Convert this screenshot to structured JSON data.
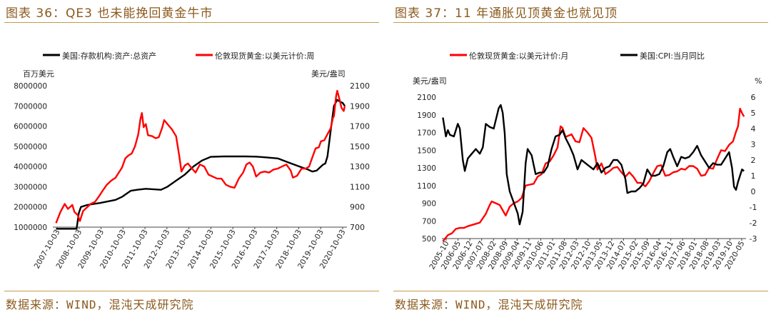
{
  "left_panel": {
    "title": "图表 36：QE3 也未能挽回黄金牛市",
    "source": "数据来源：WIND，混沌天成研究院"
  },
  "right_panel": {
    "title": "图表 37：11 年通胀见顶黄金也就见顶",
    "source": "数据来源：WIND，混沌天成研究院"
  },
  "colors": {
    "series_black": "#000000",
    "series_red": "#ff0000",
    "accent": "#c59b4c",
    "title_text": "#8a5a1c"
  },
  "chart_data": [
    {
      "type": "line",
      "legend": "top",
      "grid": false,
      "y_left_unit": "百万美元",
      "y_right_unit": "美元/盎司",
      "x_range": [
        2007.6,
        2021.2
      ],
      "y_left_lim": [
        1000000,
        8000000
      ],
      "y_right_lim": [
        700,
        2100
      ],
      "y_left_ticks": [
        "1000000",
        "2000000",
        "3000000",
        "4000000",
        "5000000",
        "6000000",
        "7000000",
        "8000000"
      ],
      "y_right_ticks": [
        "700",
        "900",
        "1100",
        "1300",
        "1500",
        "1700",
        "1900",
        "2100"
      ],
      "x_ticks": [
        "2007-10-03",
        "2008-10-03",
        "2009-10-03",
        "2010-10-03",
        "2011-10-03",
        "2012-10-03",
        "2013-10-03",
        "2014-10-03",
        "2015-10-03",
        "2016-10-03",
        "2017-10-03",
        "2018-10-03",
        "2019-10-03",
        "2020-10-03"
      ],
      "series": [
        {
          "name": "美国:存款机构:资产:总资产",
          "axis": "left",
          "color": "#000000",
          "x": [
            2007.75,
            2008.7,
            2008.8,
            2008.9,
            2009.2,
            2009.8,
            2010.5,
            2010.8,
            2011.2,
            2011.5,
            2011.9,
            2012.6,
            2012.9,
            2013.3,
            2013.7,
            2014.1,
            2014.5,
            2014.9,
            2015.5,
            2016.0,
            2016.5,
            2017.0,
            2017.5,
            2018.0,
            2018.5,
            2019.0,
            2019.4,
            2019.6,
            2019.8,
            2020.0,
            2020.1,
            2020.2,
            2020.3,
            2020.45,
            2020.6,
            2020.75,
            2020.9,
            2021.0,
            2021.1
          ],
          "values": [
            920000,
            920000,
            1700000,
            2000000,
            2100000,
            2200000,
            2350000,
            2500000,
            2800000,
            2850000,
            2900000,
            2850000,
            3000000,
            3300000,
            3600000,
            4000000,
            4300000,
            4480000,
            4500000,
            4500000,
            4500000,
            4490000,
            4450000,
            4400000,
            4200000,
            4000000,
            3850000,
            3750000,
            3800000,
            4000000,
            4100000,
            4150000,
            4500000,
            5800000,
            7000000,
            7300000,
            7200000,
            7150000,
            7000000
          ]
        },
        {
          "name": "伦敦现货黄金:以美元计价:周",
          "axis": "right",
          "color": "#ff0000",
          "x": [
            2007.75,
            2007.95,
            2008.15,
            2008.3,
            2008.5,
            2008.6,
            2008.75,
            2008.85,
            2009.0,
            2009.2,
            2009.35,
            2009.55,
            2009.75,
            2009.9,
            2010.1,
            2010.3,
            2010.5,
            2010.65,
            2010.8,
            2010.95,
            2011.1,
            2011.25,
            2011.4,
            2011.55,
            2011.65,
            2011.72,
            2011.8,
            2011.9,
            2012.0,
            2012.2,
            2012.35,
            2012.5,
            2012.65,
            2012.75,
            2012.9,
            2013.1,
            2013.3,
            2013.45,
            2013.55,
            2013.7,
            2013.85,
            2014.0,
            2014.2,
            2014.4,
            2014.6,
            2014.8,
            2015.0,
            2015.2,
            2015.4,
            2015.6,
            2015.8,
            2016.0,
            2016.2,
            2016.4,
            2016.55,
            2016.7,
            2016.85,
            2017.0,
            2017.2,
            2017.4,
            2017.6,
            2017.8,
            2018.0,
            2018.2,
            2018.4,
            2018.6,
            2018.7,
            2018.9,
            2019.1,
            2019.3,
            2019.45,
            2019.6,
            2019.75,
            2019.9,
            2020.0,
            2020.15,
            2020.3,
            2020.45,
            2020.55,
            2020.6,
            2020.65,
            2020.7,
            2020.75,
            2020.85,
            2020.95,
            2021.05,
            2021.1
          ],
          "values": [
            740,
            850,
            930,
            880,
            920,
            850,
            820,
            760,
            860,
            900,
            930,
            950,
            1010,
            1060,
            1120,
            1160,
            1190,
            1240,
            1290,
            1380,
            1410,
            1430,
            1500,
            1620,
            1770,
            1830,
            1690,
            1720,
            1610,
            1600,
            1580,
            1590,
            1680,
            1760,
            1720,
            1670,
            1600,
            1400,
            1250,
            1310,
            1330,
            1290,
            1240,
            1320,
            1300,
            1220,
            1200,
            1180,
            1180,
            1120,
            1100,
            1090,
            1180,
            1240,
            1320,
            1340,
            1300,
            1200,
            1240,
            1250,
            1240,
            1270,
            1280,
            1300,
            1320,
            1260,
            1190,
            1210,
            1280,
            1280,
            1300,
            1390,
            1480,
            1490,
            1550,
            1560,
            1620,
            1680,
            1780,
            1800,
            1900,
            2000,
            2050,
            1970,
            1880,
            1850,
            1900
          ]
        }
      ]
    },
    {
      "type": "line",
      "legend": "top",
      "grid": false,
      "y_left_unit": "美元/盎司",
      "y_right_unit": "%",
      "x_range": [
        2005.7,
        2020.95
      ],
      "y_left_lim": [
        500,
        2100
      ],
      "y_right_lim": [
        -3,
        6
      ],
      "y_left_ticks": [
        "500",
        "700",
        "900",
        "1100",
        "1300",
        "1500",
        "1700",
        "1900",
        "2100"
      ],
      "y_right_ticks": [
        "-3",
        "-2",
        "-1",
        "0",
        "1",
        "2",
        "3",
        "4",
        "5",
        "6"
      ],
      "x_ticks": [
        "2005-10",
        "2006-05",
        "2006-12",
        "2007-07",
        "2008-02",
        "2008-09",
        "2009-04",
        "2009-11",
        "2010-06",
        "2011-01",
        "2011-08",
        "2012-03",
        "2012-10",
        "2013-05",
        "2013-12",
        "2014-07",
        "2015-02",
        "2015-09",
        "2016-04",
        "2016-11",
        "2017-06",
        "2018-01",
        "2018-08",
        "2019-03",
        "2019-10",
        "2020-05"
      ],
      "series": [
        {
          "name": "伦敦现货黄金:以美元计价:月",
          "axis": "left",
          "color": "#ff0000",
          "x": [
            2005.75,
            2006.0,
            2006.2,
            2006.4,
            2006.6,
            2006.8,
            2007.0,
            2007.3,
            2007.6,
            2007.9,
            2008.1,
            2008.2,
            2008.4,
            2008.6,
            2008.8,
            2008.9,
            2009.1,
            2009.3,
            2009.5,
            2009.7,
            2009.9,
            2010.1,
            2010.3,
            2010.5,
            2010.7,
            2010.9,
            2011.1,
            2011.3,
            2011.5,
            2011.65,
            2011.75,
            2011.9,
            2012.0,
            2012.2,
            2012.4,
            2012.6,
            2012.8,
            2013.0,
            2013.2,
            2013.4,
            2013.5,
            2013.7,
            2013.9,
            2014.1,
            2014.3,
            2014.5,
            2014.7,
            2014.9,
            2015.1,
            2015.3,
            2015.5,
            2015.7,
            2015.9,
            2016.1,
            2016.3,
            2016.5,
            2016.7,
            2016.9,
            2017.1,
            2017.3,
            2017.5,
            2017.7,
            2017.9,
            2018.1,
            2018.3,
            2018.5,
            2018.7,
            2018.9,
            2019.1,
            2019.3,
            2019.5,
            2019.7,
            2019.9,
            2020.1,
            2020.3,
            2020.45,
            2020.55,
            2020.65,
            2020.75,
            2020.85
          ],
          "values": [
            470,
            540,
            560,
            610,
            620,
            620,
            640,
            660,
            680,
            780,
            880,
            920,
            900,
            880,
            800,
            760,
            860,
            900,
            920,
            960,
            1100,
            1110,
            1120,
            1200,
            1230,
            1350,
            1370,
            1440,
            1530,
            1770,
            1750,
            1650,
            1660,
            1680,
            1600,
            1590,
            1750,
            1700,
            1640,
            1420,
            1280,
            1350,
            1230,
            1260,
            1300,
            1310,
            1250,
            1200,
            1250,
            1200,
            1130,
            1130,
            1090,
            1150,
            1240,
            1320,
            1330,
            1210,
            1220,
            1250,
            1260,
            1290,
            1280,
            1320,
            1320,
            1290,
            1210,
            1220,
            1300,
            1290,
            1400,
            1500,
            1490,
            1560,
            1600,
            1710,
            1770,
            1970,
            1920,
            1880
          ]
        },
        {
          "name": "美国:CPI:当月同比",
          "axis": "right",
          "color": "#000000",
          "x": [
            2005.75,
            2005.9,
            2006.0,
            2006.1,
            2006.3,
            2006.5,
            2006.6,
            2006.75,
            2006.85,
            2007.0,
            2007.2,
            2007.4,
            2007.6,
            2007.75,
            2007.9,
            2008.1,
            2008.3,
            2008.55,
            2008.65,
            2008.75,
            2008.85,
            2008.95,
            2009.1,
            2009.3,
            2009.5,
            2009.6,
            2009.75,
            2009.9,
            2010.0,
            2010.2,
            2010.4,
            2010.6,
            2010.8,
            2011.0,
            2011.2,
            2011.4,
            2011.6,
            2011.75,
            2011.9,
            2012.1,
            2012.3,
            2012.5,
            2012.7,
            2012.9,
            2013.1,
            2013.3,
            2013.5,
            2013.7,
            2013.9,
            2014.1,
            2014.3,
            2014.5,
            2014.7,
            2014.9,
            2015.0,
            2015.2,
            2015.4,
            2015.6,
            2015.8,
            2016.0,
            2016.2,
            2016.4,
            2016.6,
            2016.8,
            2017.0,
            2017.15,
            2017.3,
            2017.5,
            2017.7,
            2017.9,
            2018.1,
            2018.3,
            2018.5,
            2018.7,
            2018.9,
            2019.1,
            2019.3,
            2019.5,
            2019.7,
            2019.9,
            2020.1,
            2020.25,
            2020.35,
            2020.45,
            2020.55,
            2020.65,
            2020.75,
            2020.85
          ],
          "values": [
            4.7,
            3.5,
            3.9,
            3.6,
            3.5,
            4.3,
            4.0,
            2.0,
            1.3,
            2.1,
            2.4,
            2.7,
            2.4,
            2.8,
            4.3,
            4.1,
            4.0,
            5.3,
            5.5,
            5.0,
            3.7,
            1.1,
            0.0,
            -0.7,
            -1.4,
            -2.1,
            -1.3,
            1.8,
            2.7,
            2.3,
            1.1,
            1.2,
            1.2,
            1.6,
            2.7,
            3.5,
            3.6,
            3.9,
            3.4,
            2.9,
            2.3,
            1.4,
            2.0,
            1.8,
            1.6,
            1.4,
            1.8,
            1.2,
            1.5,
            1.6,
            2.0,
            2.0,
            1.7,
            0.8,
            -0.1,
            0.0,
            0.0,
            0.2,
            0.5,
            1.4,
            1.0,
            1.0,
            1.1,
            1.6,
            2.5,
            2.7,
            2.2,
            1.6,
            2.2,
            2.1,
            2.2,
            2.5,
            2.9,
            2.3,
            1.9,
            1.5,
            1.8,
            1.7,
            1.7,
            2.1,
            2.5,
            1.5,
            0.3,
            0.1,
            0.6,
            1.0,
            1.4,
            1.3
          ]
        }
      ]
    }
  ]
}
